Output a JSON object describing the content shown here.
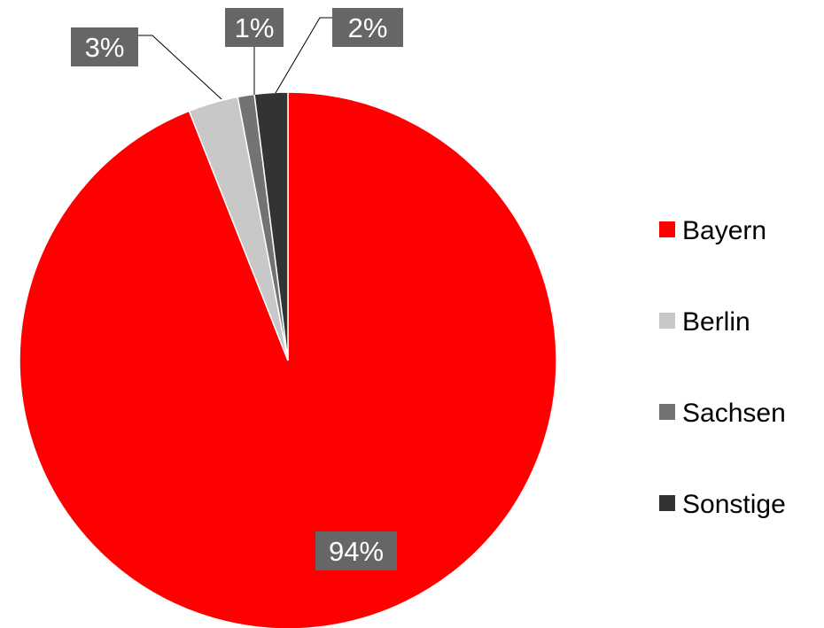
{
  "chart_data": {
    "type": "pie",
    "title": "",
    "start_angle_deg": 0,
    "direction": "clockwise",
    "legend_position": "right",
    "slices": [
      {
        "label": "Bayern",
        "value": 94,
        "display": "94%",
        "color": "#ff0000"
      },
      {
        "label": "Berlin",
        "value": 3,
        "display": "3%",
        "color": "#c8c8c8"
      },
      {
        "label": "Sachsen",
        "value": 1,
        "display": "1%",
        "color": "#737373"
      },
      {
        "label": "Sonstige",
        "value": 2,
        "display": "2%",
        "color": "#333333"
      }
    ],
    "label_box_color": "#666666"
  }
}
